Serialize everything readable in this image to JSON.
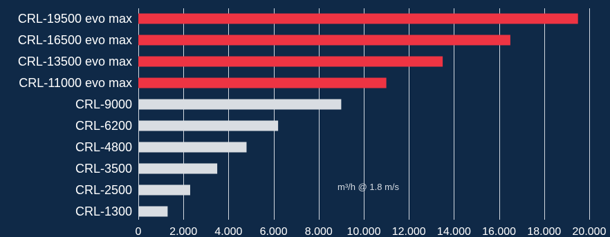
{
  "colors": {
    "background": "#0f2947",
    "highlight": "#ee3443",
    "standard": "#d9dde2",
    "grid": "#e9edf2",
    "text": "#ffffff"
  },
  "chart_data": {
    "type": "bar",
    "orientation": "horizontal",
    "categories": [
      "CRL-19500 evo max",
      "CRL-16500 evo max",
      "CRL-13500 evo max",
      "CRL-11000 evo max",
      "CRL-9000",
      "CRL-6200",
      "CRL-4800",
      "CRL-3500",
      "CRL-2500",
      "CRL-1300"
    ],
    "values": [
      19500,
      16500,
      13500,
      11000,
      9000,
      6200,
      4800,
      3500,
      2300,
      1300
    ],
    "highlighted": [
      true,
      true,
      true,
      true,
      false,
      false,
      false,
      false,
      false,
      false
    ],
    "xlim": [
      0,
      20000
    ],
    "xticks": [
      0,
      2000,
      4000,
      6000,
      8000,
      10000,
      12000,
      14000,
      16000,
      18000,
      20000
    ],
    "xtick_labels": [
      "0",
      "2.000",
      "4.000",
      "6.000",
      "8.000",
      "10.000",
      "12.000",
      "14.000",
      "16.000",
      "18.000",
      "20.000"
    ],
    "annotation": "m³/h @ 1.8 m/s",
    "grid": true
  }
}
